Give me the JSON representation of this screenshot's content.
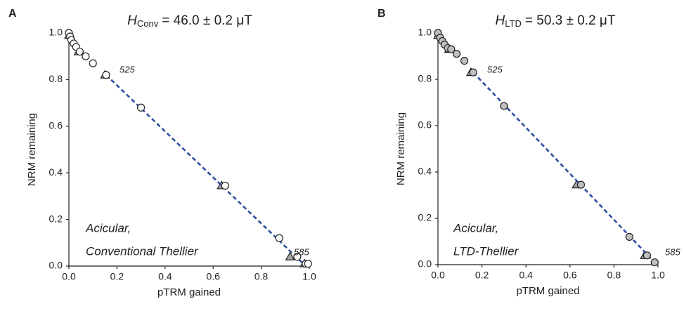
{
  "charts": [
    {
      "type": "scatter",
      "panel_label": "A",
      "title": {
        "symbol": "H",
        "subscript": "Conv",
        "rest": "= 46.0 ± 0.2 μT"
      },
      "x_label": "pTRM gained",
      "y_label": "NRM remaining",
      "annotations": [
        "Acicular,",
        "Conventional Thellier",
        "525",
        "585"
      ],
      "xlim": [
        0,
        1.0
      ],
      "ylim": [
        0,
        1.0
      ],
      "xticks": [
        {
          "value": 0,
          "label": "0.0"
        },
        0.2,
        0.4,
        0.6,
        0.8,
        {
          "value": 1.0,
          "label": "1.0"
        }
      ],
      "yticks": [
        {
          "value": 0,
          "label": "0.0"
        },
        0.2,
        0.4,
        0.6,
        0.8,
        {
          "value": 1.0,
          "label": "1.0"
        }
      ],
      "series": [
        {
          "marker": "triangle",
          "color": "#a6a6a6",
          "x": [
            0.0,
            0.04,
            0.15,
            0.635,
            0.92,
            0.98
          ],
          "values": [
            0.99,
            0.92,
            0.82,
            0.345,
            0.04,
            0.01
          ]
        },
        {
          "marker": "circle",
          "color": "#ffffff",
          "x": [
            0.0,
            0.005,
            0.01,
            0.02,
            0.03,
            0.045,
            0.07,
            0.1,
            0.155,
            0.3,
            0.65,
            0.875,
            0.95,
            0.985,
            0.995
          ],
          "values": [
            1.0,
            0.985,
            0.97,
            0.955,
            0.94,
            0.92,
            0.9,
            0.87,
            0.82,
            0.68,
            0.345,
            0.12,
            0.04,
            0.01,
            0.01
          ]
        }
      ],
      "fit": {
        "color": "#2f4f9f",
        "x": [
          0.155,
          0.975
        ],
        "values": [
          0.82,
          0.01
        ]
      }
    },
    {
      "type": "scatter",
      "panel_label": "B",
      "title": {
        "symbol": "H",
        "subscript": "LTD",
        "rest": "= 50.3 ± 0.2 μT"
      },
      "x_label": "pTRM gained",
      "y_label": "NRM remaining",
      "annotations": [
        "Acicular,",
        "LTD-Thellier",
        "525",
        "585"
      ],
      "xlim": [
        0,
        1.0
      ],
      "ylim": [
        0,
        1.0
      ],
      "xticks": [
        {
          "value": 0,
          "label": "0.0"
        },
        0.2,
        0.4,
        0.6,
        0.8,
        {
          "value": 1.0,
          "label": "1.0"
        }
      ],
      "yticks": [
        {
          "value": 0,
          "label": "0.0"
        },
        0.2,
        0.4,
        0.6,
        0.8,
        {
          "value": 1.0,
          "label": "1.0"
        }
      ],
      "series": [
        {
          "marker": "triangle",
          "color": "#a6a6a6",
          "x": [
            0.0,
            0.05,
            0.15,
            0.63,
            0.94
          ],
          "values": [
            0.99,
            0.93,
            0.83,
            0.345,
            0.04
          ]
        },
        {
          "marker": "circle",
          "color": "#bfbfbf",
          "x": [
            0.0,
            0.01,
            0.02,
            0.03,
            0.045,
            0.06,
            0.085,
            0.12,
            0.16,
            0.3,
            0.65,
            0.87,
            0.95,
            0.985
          ],
          "values": [
            1.0,
            0.98,
            0.965,
            0.95,
            0.935,
            0.93,
            0.91,
            0.88,
            0.83,
            0.685,
            0.345,
            0.12,
            0.04,
            0.01
          ]
        }
      ],
      "fit": {
        "color": "#2f4f9f",
        "x": [
          0.16,
          0.975
        ],
        "values": [
          0.83,
          0.02
        ]
      }
    }
  ]
}
